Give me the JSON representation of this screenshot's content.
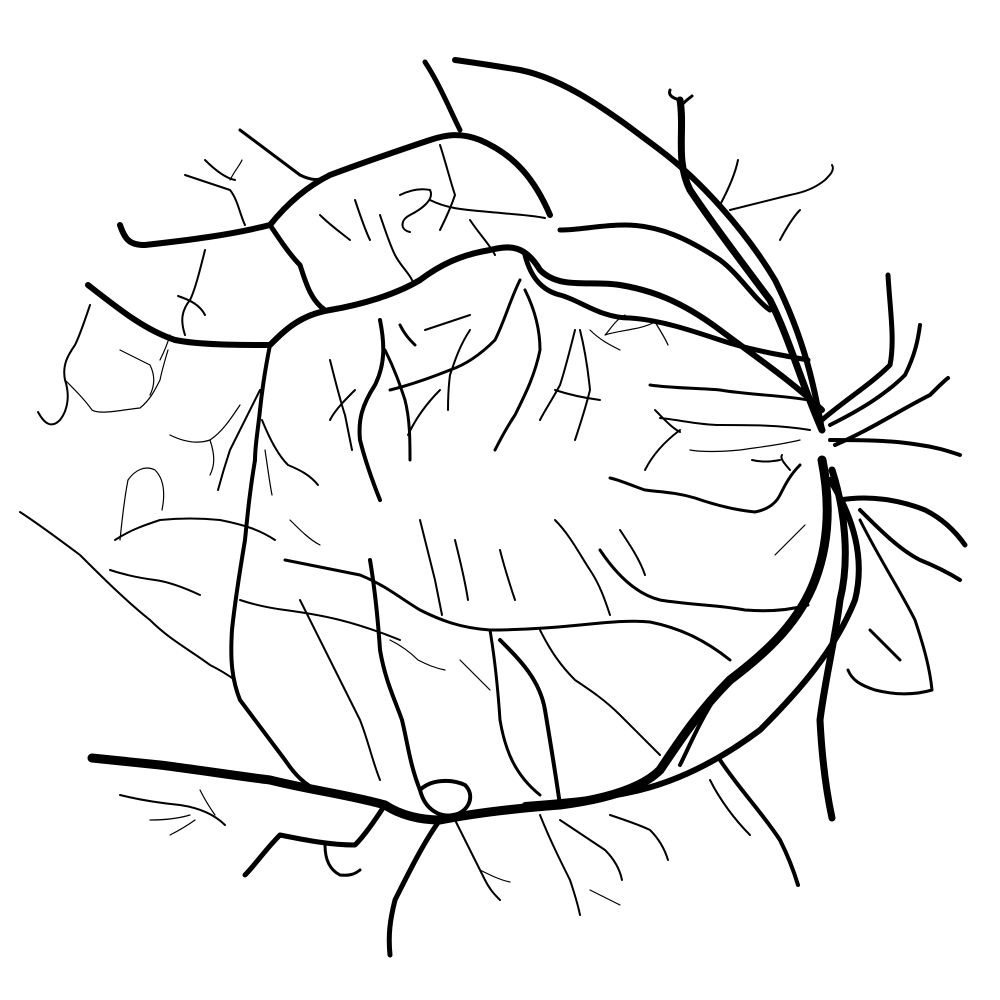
{
  "image": {
    "subject": "retinal-vessel-segmentation",
    "background_color": "#ffffff",
    "vessel_color": "#000000"
  }
}
